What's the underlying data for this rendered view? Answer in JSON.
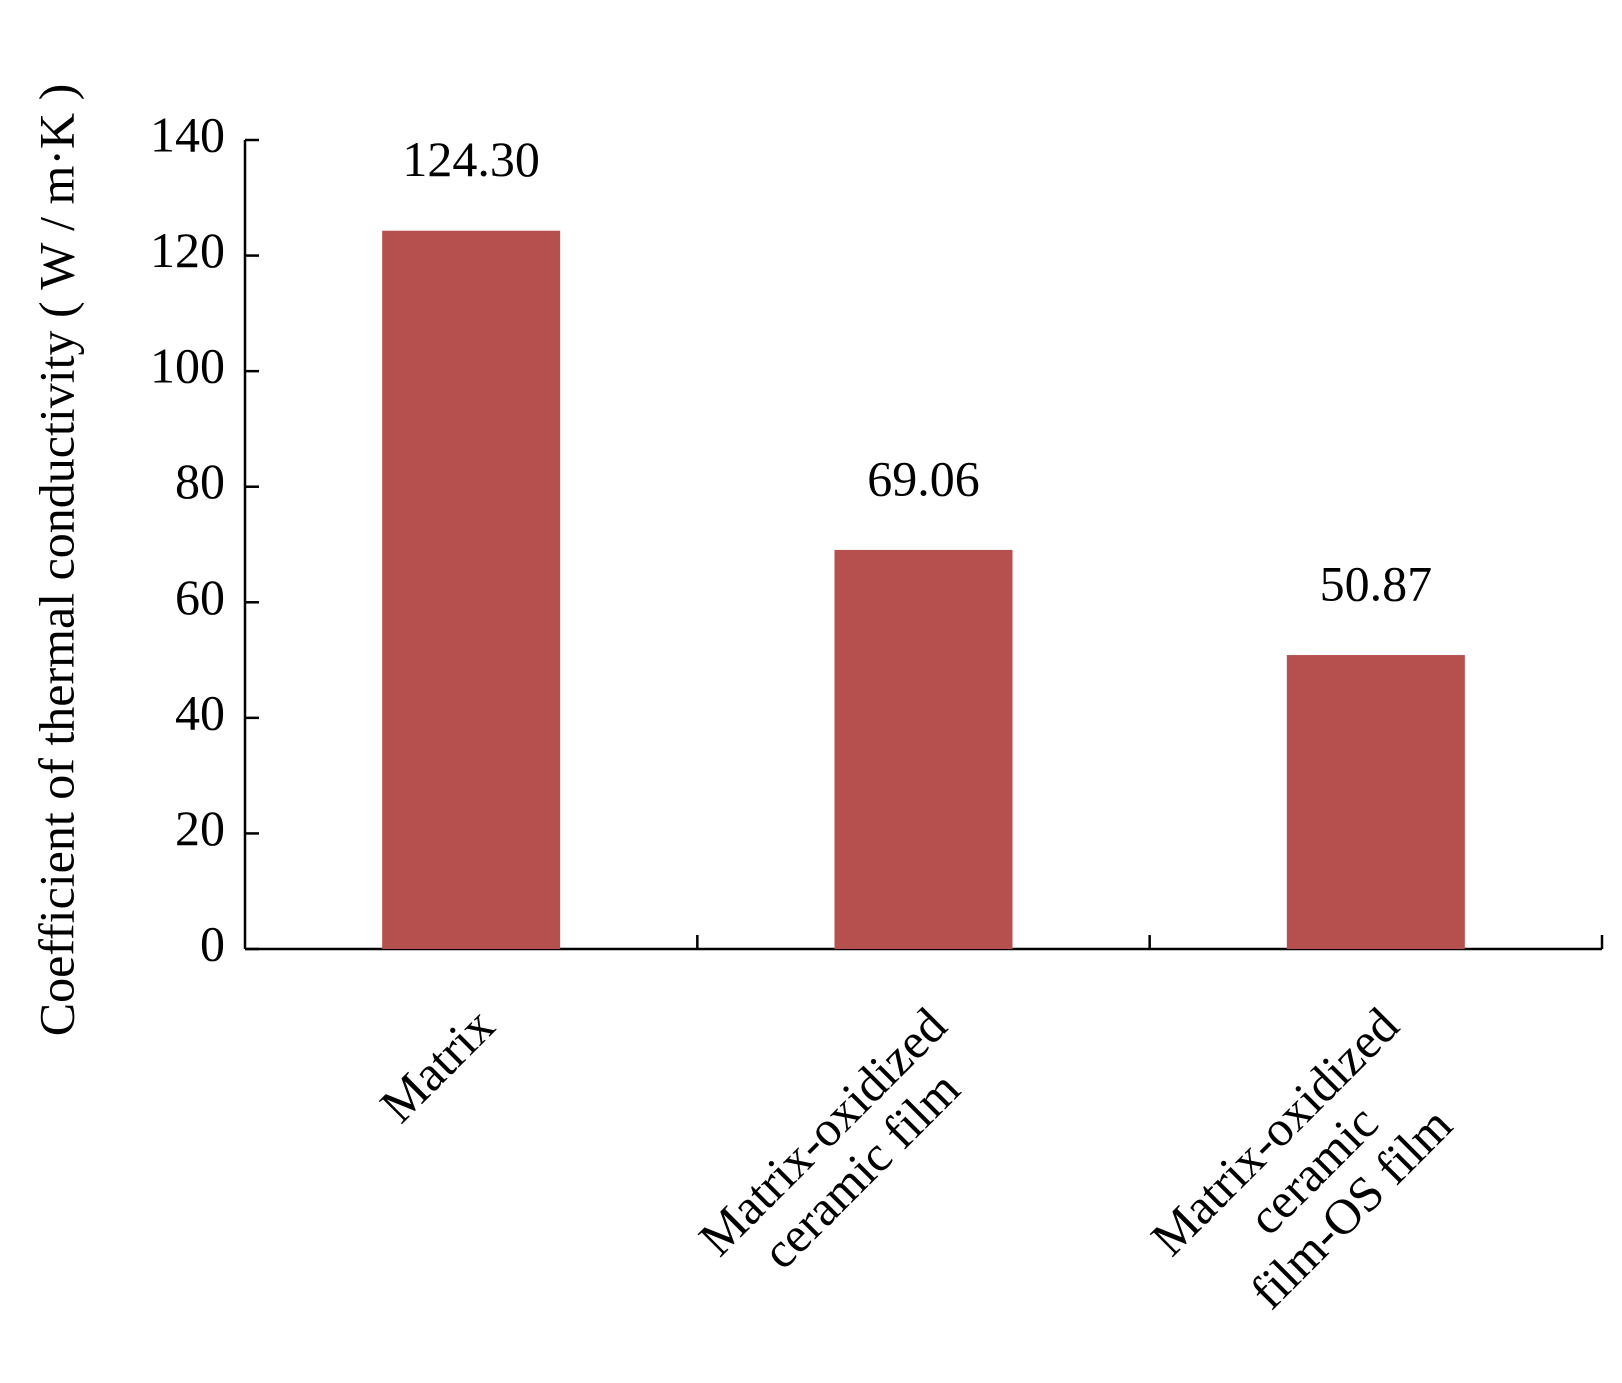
{
  "chart_data": {
    "type": "bar",
    "y_label": "Coefficient of thermal conductivity ( W / m·K )",
    "categories": [
      [
        "Matrix"
      ],
      [
        "Matrix-oxidized",
        "ceramic film"
      ],
      [
        "Matrix-oxidized",
        "ceramic",
        "film-OS film"
      ]
    ],
    "values": [
      124.3,
      69.06,
      50.87
    ],
    "value_labels": [
      "124.30",
      "69.06",
      "50.87"
    ],
    "color": "#b5504e",
    "ylim": [
      0,
      140
    ],
    "yticks": [
      0,
      20,
      40,
      60,
      80,
      100,
      120,
      140
    ]
  }
}
